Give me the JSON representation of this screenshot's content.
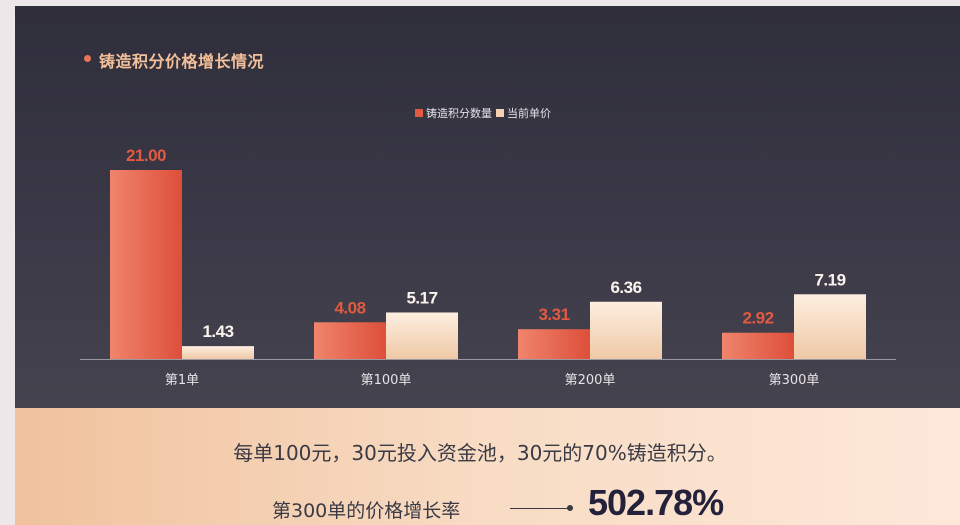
{
  "title": "铸造积分价格增长情况",
  "chart_data": {
    "type": "bar",
    "categories": [
      "第1单",
      "第100单",
      "第200单",
      "第300单"
    ],
    "series": [
      {
        "name": "铸造积分数量",
        "values": [
          21.0,
          4.08,
          3.31,
          2.92
        ],
        "labels": [
          "21.00",
          "4.08",
          "3.31",
          "2.92"
        ]
      },
      {
        "name": "当前单价",
        "values": [
          1.43,
          5.17,
          6.36,
          7.19
        ],
        "labels": [
          "1.43",
          "5.17",
          "6.36",
          "7.19"
        ]
      }
    ],
    "ylim": [
      0,
      21
    ],
    "grid": false,
    "legend_position": "top-center",
    "colors": {
      "series1": "#e25a42",
      "series2": "#f3d2b4"
    }
  },
  "footer": {
    "sentence": "每单100元，30元投入资金池，30元的70%铸造积分。",
    "growth_label": "第300单的价格增长率",
    "growth_value": "502.78%"
  }
}
